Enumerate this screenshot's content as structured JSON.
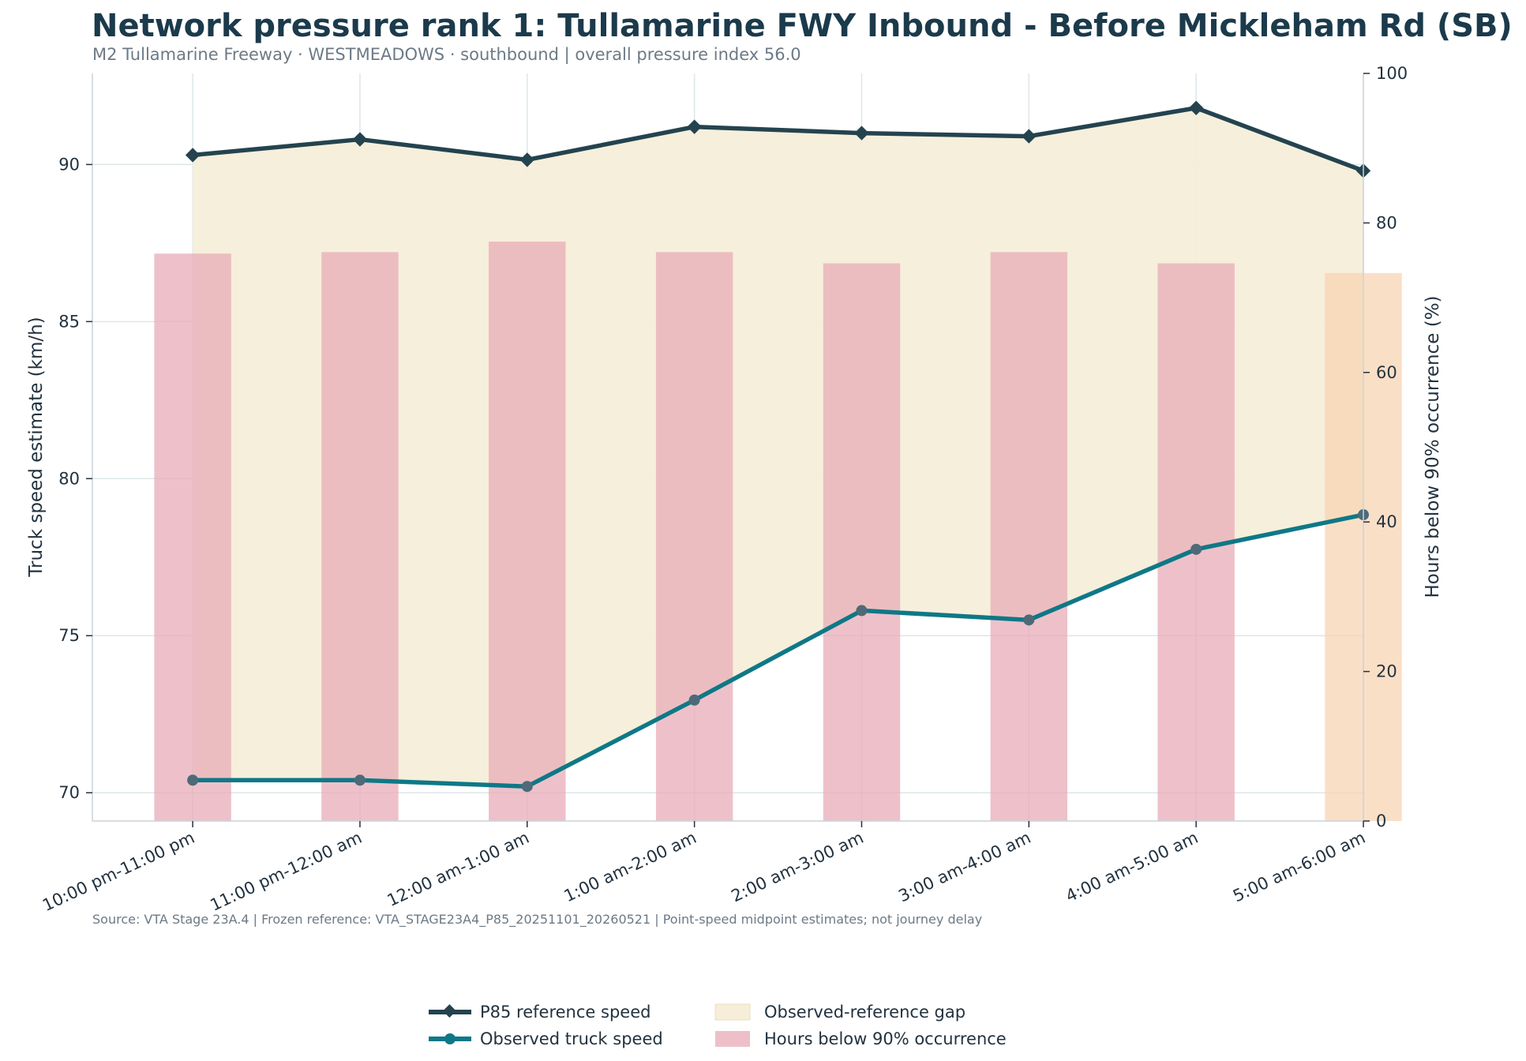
{
  "chart_data": {
    "type": "line",
    "title": "Network pressure rank 1: Tullamarine FWY Inbound - Before Mickleham Rd (SB)",
    "subtitle": "M2 Tullamarine Freeway · WESTMEADOWS · southbound | overall pressure index 56.0",
    "source_note": "Source: VTA Stage 23A.4 | Frozen reference: VTA_STAGE23A4_P85_20251101_20260521 | Point-speed midpoint estimates; not journey delay",
    "categories": [
      "10:00 pm-11:00 pm",
      "11:00 pm-12:00 am",
      "12:00 am-1:00 am",
      "1:00 am-2:00 am",
      "2:00 am-3:00 am",
      "3:00 am-4:00 am",
      "4:00 am-5:00 am",
      "5:00 am-6:00 am"
    ],
    "y_left": {
      "label": "Truck speed estimate (km/h)",
      "range": [
        69.1,
        92.9
      ],
      "ticks": [
        70,
        75,
        80,
        85,
        90
      ]
    },
    "y_right": {
      "label": "Hours below 90% occurrence (%)",
      "range": [
        0,
        100
      ],
      "ticks": [
        0,
        20,
        40,
        60,
        80,
        100
      ]
    },
    "series": [
      {
        "name": "P85 reference speed",
        "axis": "left",
        "kind": "line",
        "marker": "diamond",
        "color": "#24434f",
        "values": [
          90.3,
          90.8,
          90.15,
          91.2,
          91.0,
          90.9,
          91.8,
          89.8
        ]
      },
      {
        "name": "Observed truck speed",
        "axis": "left",
        "kind": "line",
        "marker": "circle",
        "color": "#0e7887",
        "values": [
          70.4,
          70.4,
          70.2,
          72.95,
          75.8,
          75.5,
          77.75,
          78.85
        ]
      },
      {
        "name": "Observed-reference gap",
        "axis": "left",
        "kind": "area",
        "color": "#f6eed9",
        "between": [
          "P85 reference speed",
          "Observed truck speed"
        ]
      },
      {
        "name": "Hours below 90% occurrence",
        "axis": "right",
        "kind": "bar",
        "color": "#e8a9b6",
        "highlight_color": "#f8d3b2",
        "highlight_index": 7,
        "values": [
          75.9,
          76.1,
          77.5,
          76.1,
          74.6,
          76.1,
          74.6,
          73.3
        ]
      }
    ],
    "legend": {
      "position": "bottom-center",
      "columns": 2
    },
    "grid": true
  }
}
